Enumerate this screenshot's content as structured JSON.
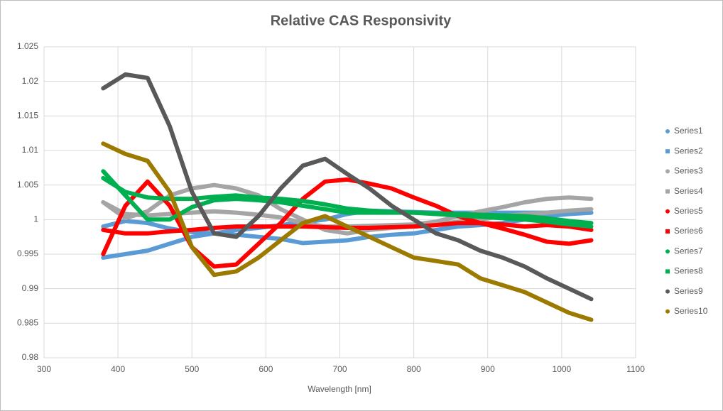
{
  "chart_data": {
    "type": "scatter",
    "title": "Relative CAS Responsivity",
    "x_label": "Wavelength [nm]",
    "x": [
      380,
      410,
      440,
      470,
      500,
      530,
      560,
      590,
      620,
      650,
      680,
      710,
      740,
      770,
      800,
      830,
      860,
      890,
      920,
      950,
      980,
      1010,
      1040
    ],
    "xlim": [
      300,
      1100
    ],
    "xticks": [
      300,
      400,
      500,
      600,
      700,
      800,
      900,
      1000,
      1100
    ],
    "ylim": [
      0.98,
      1.025
    ],
    "yticks": [
      0.98,
      0.985,
      0.99,
      0.995,
      1,
      1.005,
      1.01,
      1.015,
      1.02,
      1.025
    ],
    "grid": true,
    "legend": "right",
    "series": [
      {
        "name": "Series1",
        "color": "#5b9bd5",
        "marker": "circle",
        "values": [
          0.999,
          0.9998,
          0.9995,
          0.9987,
          0.9982,
          0.998,
          0.9978,
          0.9975,
          0.9972,
          0.9966,
          0.9968,
          0.997,
          0.9975,
          0.9978,
          0.998,
          0.9985,
          0.999,
          0.9992,
          0.9995,
          1.0,
          1.0005,
          1.0008,
          1.001
        ]
      },
      {
        "name": "Series2",
        "color": "#5b9bd5",
        "marker": "square",
        "values": [
          0.9945,
          0.995,
          0.9955,
          0.9965,
          0.9975,
          0.998,
          0.9985,
          0.9988,
          0.9992,
          0.9996,
          1.0,
          1.0008,
          1.0013,
          1.0012,
          1.0011,
          1.001,
          1.001,
          1.001,
          1.001,
          1.001,
          1.001,
          1.001,
          1.001
        ]
      },
      {
        "name": "Series3",
        "color": "#a5a5a5",
        "marker": "circle",
        "values": [
          1.0025,
          1.0002,
          1.0012,
          1.0035,
          1.0045,
          1.005,
          1.0045,
          1.0035,
          1.0015,
          1.0,
          0.9985,
          0.998,
          0.9985,
          0.9988,
          0.999,
          0.9993,
          0.9997,
          1.0,
          1.0005,
          1.0008,
          1.001,
          1.0013,
          1.0015
        ]
      },
      {
        "name": "Series4",
        "color": "#a5a5a5",
        "marker": "square",
        "values": [
          1.0025,
          1.0008,
          1.0006,
          1.0008,
          1.001,
          1.0012,
          1.001,
          1.0007,
          1.0003,
          0.9995,
          0.999,
          0.999,
          0.9991,
          0.9992,
          0.9993,
          0.9997,
          1.0005,
          1.0012,
          1.0018,
          1.0025,
          1.003,
          1.0032,
          1.003
        ]
      },
      {
        "name": "Series5",
        "color": "#ff0000",
        "marker": "circle",
        "values": [
          0.995,
          1.002,
          1.0055,
          1.002,
          0.996,
          0.9932,
          0.9935,
          0.9965,
          0.9995,
          1.003,
          1.0055,
          1.0058,
          1.0052,
          1.0045,
          1.0032,
          1.002,
          1.0005,
          0.9995,
          0.9987,
          0.9978,
          0.9968,
          0.9965,
          0.997
        ]
      },
      {
        "name": "Series6",
        "color": "#ff0000",
        "marker": "square",
        "values": [
          0.9985,
          0.998,
          0.998,
          0.9983,
          0.9985,
          0.9988,
          0.999,
          0.999,
          0.999,
          0.999,
          0.9989,
          0.9988,
          0.9988,
          0.9989,
          0.999,
          0.9992,
          0.9995,
          0.9995,
          0.9993,
          0.999,
          0.9992,
          0.999,
          0.9985
        ]
      },
      {
        "name": "Series7",
        "color": "#00b050",
        "marker": "circle",
        "values": [
          1.007,
          1.0035,
          1.0,
          1.0,
          1.0018,
          1.0028,
          1.003,
          1.0028,
          1.0025,
          1.002,
          1.0015,
          1.001,
          1.001,
          1.001,
          1.001,
          1.0008,
          1.0006,
          1.0004,
          1.0002,
          1.0,
          0.9997,
          0.9993,
          0.999
        ]
      },
      {
        "name": "Series8",
        "color": "#00b050",
        "marker": "square",
        "values": [
          1.006,
          1.004,
          1.0032,
          1.003,
          1.003,
          1.0033,
          1.0035,
          1.0032,
          1.003,
          1.0027,
          1.0022,
          1.0016,
          1.0013,
          1.0011,
          1.001,
          1.0009,
          1.0008,
          1.0007,
          1.0006,
          1.0005,
          1.0002,
          0.9998,
          0.9995
        ]
      },
      {
        "name": "Series9",
        "color": "#595959",
        "marker": "circle",
        "values": [
          1.019,
          1.021,
          1.0205,
          1.0135,
          1.004,
          0.998,
          0.9975,
          1.0005,
          1.0045,
          1.0078,
          1.0088,
          1.0066,
          1.0045,
          1.002,
          1.0,
          0.998,
          0.997,
          0.9955,
          0.9945,
          0.9932,
          0.9915,
          0.99,
          0.9885
        ]
      },
      {
        "name": "Series10",
        "color": "#9c7a00",
        "marker": "circle",
        "values": [
          1.011,
          1.0095,
          1.0085,
          1.004,
          0.996,
          0.992,
          0.9925,
          0.9945,
          0.997,
          0.9995,
          1.0005,
          0.999,
          0.9975,
          0.996,
          0.9945,
          0.994,
          0.9935,
          0.9915,
          0.9905,
          0.9895,
          0.988,
          0.9865,
          0.9855
        ]
      }
    ]
  }
}
